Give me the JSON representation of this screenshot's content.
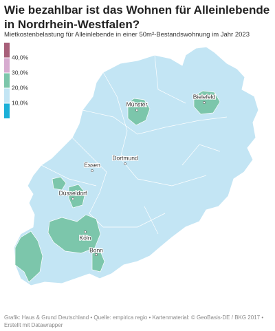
{
  "title": "Wie bezahlbar ist das Wohnen für Alleinlebende in Nordrhein-Westfalen?",
  "subtitle": "Mietkostenbelastung für Alleinlebende in einer 50m²-Bestandswohnung im Jahr 2023",
  "legend": {
    "range": [
      0,
      50
    ],
    "ticks": [
      {
        "value": 40,
        "label": "40,0%"
      },
      {
        "value": 30,
        "label": "30,0%"
      },
      {
        "value": 20,
        "label": "20,0%"
      },
      {
        "value": 10,
        "label": "10,0%"
      }
    ],
    "colors": [
      "#1bb0d8",
      "#c3e5f4",
      "#7cc6ab",
      "#d7acd0",
      "#a8607a"
    ]
  },
  "cities": [
    "Münster",
    "Bielefeld",
    "Essen",
    "Dortmund",
    "Düsseldorf",
    "Köln",
    "Bonn"
  ],
  "footer": "Grafik: Haus & Grund Deutschland • Quelle: empirica regio • Kartenmaterial: © GeoBasis-DE / BKG 2017 • Erstellt mit Datawrapper"
}
